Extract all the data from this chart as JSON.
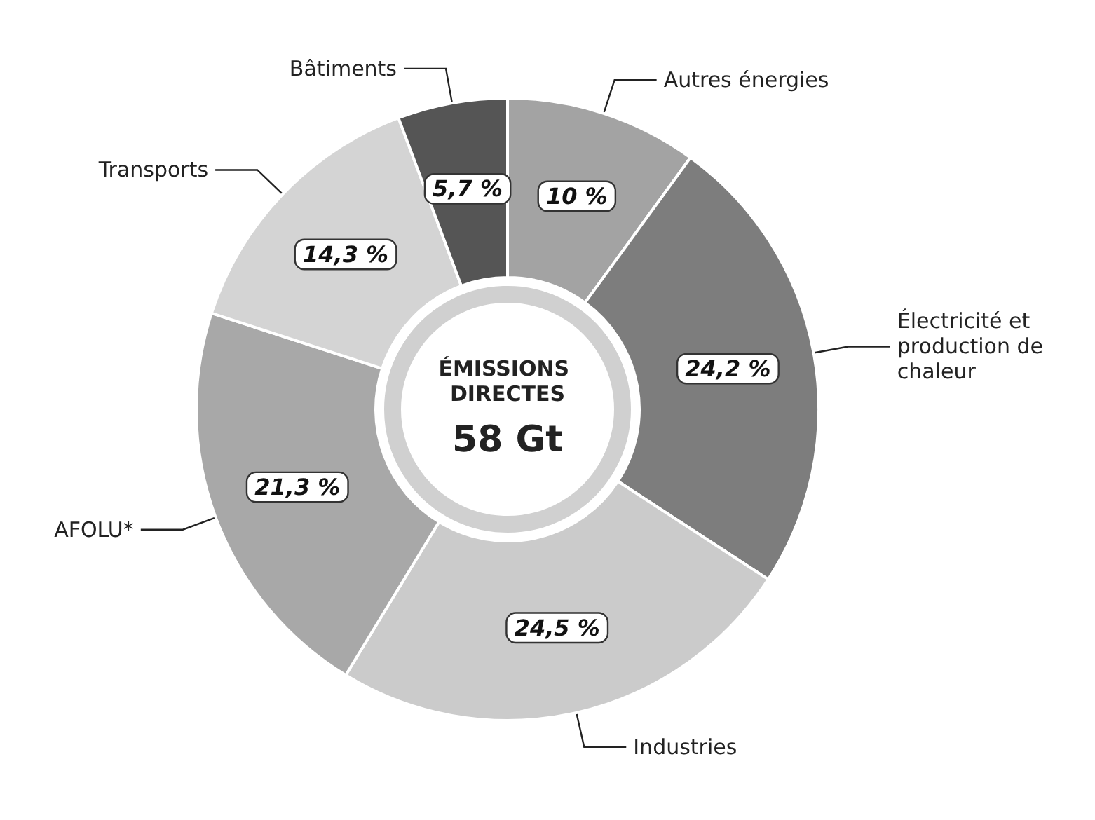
{
  "chart_data": {
    "type": "donut",
    "title": "ÉMISSIONS DIRECTES",
    "subtitle": "58 Gt",
    "categories": [
      "Autres énergies",
      "Électricité et production de chaleur",
      "Industries",
      "AFOLU*",
      "Transports",
      "Bâtiments"
    ],
    "values": [
      10,
      24.2,
      24.5,
      21.3,
      14.3,
      5.7
    ],
    "value_labels": [
      "10 %",
      "24,2 %",
      "24,5 %",
      "21,3 %",
      "14,3 %",
      "5,7 %"
    ],
    "colors": [
      "#a3a3a3",
      "#7d7d7d",
      "#cbcbcb",
      "#a8a8a8",
      "#d4d4d4",
      "#555555"
    ],
    "legend": false
  }
}
